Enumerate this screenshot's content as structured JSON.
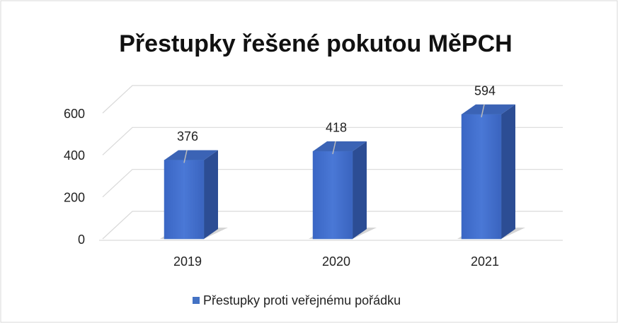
{
  "chart_data": {
    "type": "bar3d",
    "title": "Přestupky řešené pokutou MěPCH",
    "categories": [
      "2019",
      "2020",
      "2021"
    ],
    "series": [
      {
        "name": "Přestupky proti veřejnému pořádku",
        "color": "#4472c4",
        "values": [
          376,
          418,
          594
        ]
      }
    ],
    "ylim": [
      0,
      600
    ],
    "yticks": [
      0,
      200,
      400,
      600
    ],
    "grid": true,
    "legend": "bottom"
  }
}
